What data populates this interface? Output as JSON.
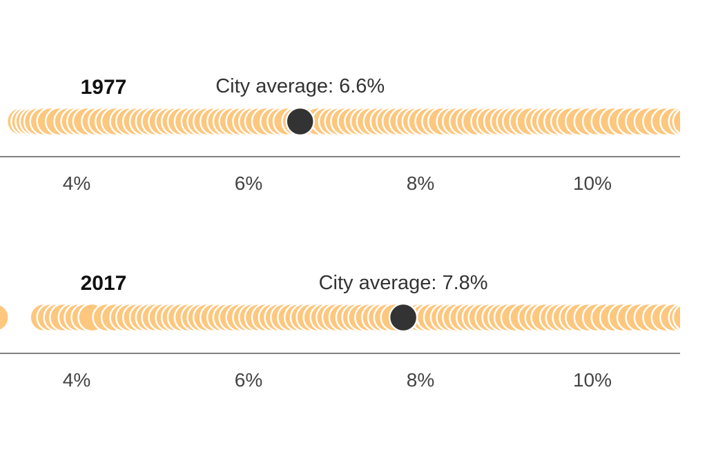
{
  "chart_data": [
    {
      "type": "scatter",
      "year": "1977",
      "average": {
        "label": "City average: 6.6%",
        "value": 6.6
      },
      "xlim": [
        2.95,
        10.0
      ],
      "ticks": [
        {
          "value": 4,
          "label": "4%"
        },
        {
          "value": 6,
          "label": "6%"
        },
        {
          "value": 8,
          "label": "8%"
        },
        {
          "value": 10,
          "label": "10%"
        }
      ],
      "colors": {
        "points": "#fdc77e",
        "average": "#333333",
        "axis": "#333333"
      },
      "values": [
        3.35,
        3.4,
        3.45,
        3.5,
        3.55,
        3.62,
        3.7,
        3.8,
        3.9,
        3.98,
        4.05,
        4.12,
        4.22,
        4.3,
        4.38,
        4.45,
        4.55,
        4.62,
        4.7,
        4.78,
        4.85,
        4.92,
        5.0,
        5.08,
        5.15,
        5.22,
        5.3,
        5.38,
        5.45,
        5.52,
        5.6,
        5.68,
        5.75,
        5.82,
        5.9,
        5.98,
        6.05,
        6.12,
        6.2,
        6.3,
        6.38,
        6.45,
        6.55,
        6.65,
        6.72,
        6.8,
        6.9,
        6.98,
        7.05,
        7.12,
        7.2,
        7.28,
        7.35,
        7.42,
        7.5,
        7.58,
        7.65,
        7.72,
        7.8,
        7.88,
        7.95,
        8.02,
        8.1,
        8.18,
        8.25,
        8.35,
        8.42,
        8.5,
        8.58,
        8.65,
        8.75,
        8.82,
        8.9,
        8.98,
        9.05,
        9.12,
        9.2,
        9.28,
        9.38,
        9.45,
        9.52,
        9.6,
        9.68,
        9.75,
        9.85,
        9.95,
        10.05,
        10.15,
        10.25,
        10.35,
        10.45,
        10.55,
        10.65,
        10.75,
        10.85,
        10.95,
        11.05,
        11.1
      ]
    },
    {
      "type": "scatter",
      "year": "2017",
      "average": {
        "label": "City average: 7.8%",
        "value": 7.8
      },
      "xlim": [
        2.95,
        10.0
      ],
      "ticks": [
        {
          "value": 4,
          "label": "4%"
        },
        {
          "value": 6,
          "label": "6%"
        },
        {
          "value": 8,
          "label": "8%"
        },
        {
          "value": 10,
          "label": "10%"
        }
      ],
      "colors": {
        "points": "#fdc77e",
        "average": "#333333",
        "axis": "#333333"
      },
      "values": [
        3.05,
        3.62,
        3.7,
        3.78,
        3.85,
        3.95,
        4.02,
        4.1,
        4.18,
        4.35,
        4.45,
        4.55,
        4.62,
        4.7,
        4.78,
        4.85,
        4.92,
        5.0,
        5.08,
        5.15,
        5.22,
        5.3,
        5.38,
        5.45,
        5.52,
        5.6,
        5.68,
        5.75,
        5.82,
        5.9,
        5.98,
        6.05,
        6.12,
        6.2,
        6.28,
        6.35,
        6.42,
        6.5,
        6.58,
        6.65,
        6.72,
        6.8,
        6.88,
        6.95,
        7.02,
        7.1,
        7.18,
        7.25,
        7.32,
        7.4,
        7.48,
        7.55,
        7.62,
        7.7,
        7.9,
        7.98,
        8.05,
        8.12,
        8.2,
        8.28,
        8.35,
        8.42,
        8.5,
        8.58,
        8.65,
        8.72,
        8.8,
        8.88,
        8.95,
        9.02,
        9.1,
        9.2,
        9.3,
        9.38,
        9.45,
        9.55,
        9.62,
        9.7,
        9.78,
        9.85,
        9.95,
        10.05,
        10.15,
        10.25,
        10.35,
        10.45,
        10.55,
        10.65,
        10.75,
        10.85,
        10.95,
        11.05,
        11.1
      ]
    }
  ]
}
